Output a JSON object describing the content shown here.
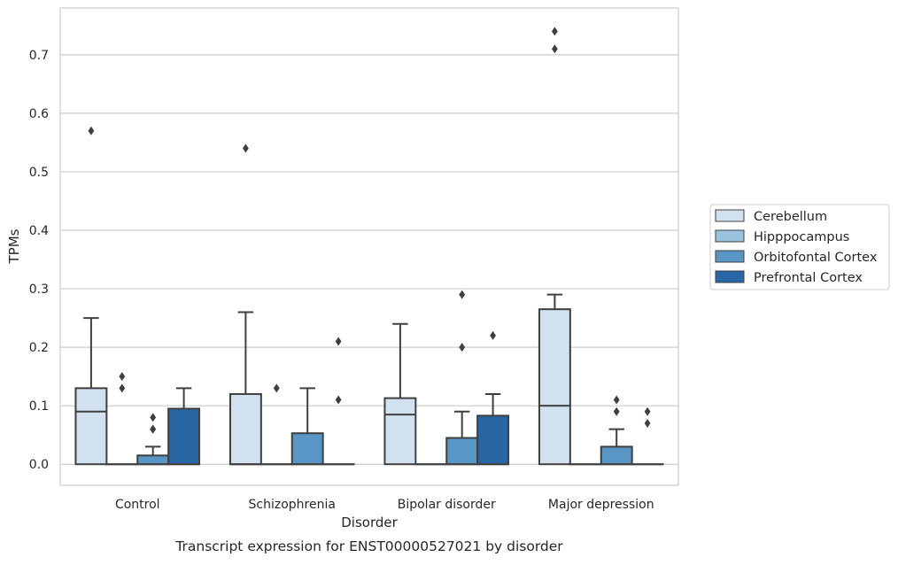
{
  "caption": "Transcript expression for ENST00000527021 by disorder",
  "chart_data": {
    "type": "box",
    "title": "",
    "xlabel": "Disorder",
    "ylabel": "TPMs",
    "ylim": [
      -0.036,
      0.78
    ],
    "yticks": [
      0.0,
      0.1,
      0.2,
      0.3,
      0.4,
      0.5,
      0.6,
      0.7
    ],
    "ytick_labels": [
      "0.0",
      "0.1",
      "0.2",
      "0.3",
      "0.4",
      "0.5",
      "0.6",
      "0.7"
    ],
    "grid": "horizontal",
    "legend_position": "right",
    "categories": [
      "Control",
      "Schizophrenia",
      "Bipolar disorder",
      "Major depression"
    ],
    "series": [
      {
        "name": "Cerebellum",
        "color": "#d1e1f0",
        "boxes": [
          {
            "q1": 0.0,
            "median": 0.09,
            "q3": 0.13,
            "whislo": 0.0,
            "whishi": 0.25,
            "fliers": [
              0.57
            ]
          },
          {
            "q1": 0.0,
            "median": 0.0,
            "q3": 0.12,
            "whislo": 0.0,
            "whishi": 0.26,
            "fliers": [
              0.54
            ]
          },
          {
            "q1": 0.0,
            "median": 0.085,
            "q3": 0.113,
            "whislo": 0.0,
            "whishi": 0.24,
            "fliers": []
          },
          {
            "q1": 0.0,
            "median": 0.1,
            "q3": 0.265,
            "whislo": 0.0,
            "whishi": 0.29,
            "fliers": [
              0.71,
              0.74
            ]
          }
        ]
      },
      {
        "name": "Hipppocampus",
        "color": "#9ac1dd",
        "boxes": [
          {
            "q1": 0.0,
            "median": 0.0,
            "q3": 0.0,
            "whislo": 0.0,
            "whishi": 0.0,
            "fliers": [
              0.13,
              0.15
            ]
          },
          {
            "q1": 0.0,
            "median": 0.0,
            "q3": 0.0,
            "whislo": 0.0,
            "whishi": 0.0,
            "fliers": [
              0.13
            ]
          },
          {
            "q1": 0.0,
            "median": 0.0,
            "q3": 0.0,
            "whislo": 0.0,
            "whishi": 0.0,
            "fliers": []
          },
          {
            "q1": 0.0,
            "median": 0.0,
            "q3": 0.0,
            "whislo": 0.0,
            "whishi": 0.0,
            "fliers": []
          }
        ]
      },
      {
        "name": "Orbitofontal Cortex",
        "color": "#5a96c5",
        "boxes": [
          {
            "q1": 0.0,
            "median": 0.0,
            "q3": 0.015,
            "whislo": 0.0,
            "whishi": 0.03,
            "fliers": [
              0.06,
              0.06,
              0.08
            ]
          },
          {
            "q1": 0.0,
            "median": 0.0,
            "q3": 0.053,
            "whislo": 0.0,
            "whishi": 0.13,
            "fliers": []
          },
          {
            "q1": 0.0,
            "median": 0.0,
            "q3": 0.045,
            "whislo": 0.0,
            "whishi": 0.09,
            "fliers": [
              0.2,
              0.29
            ]
          },
          {
            "q1": 0.0,
            "median": 0.0,
            "q3": 0.03,
            "whislo": 0.0,
            "whishi": 0.06,
            "fliers": [
              0.09,
              0.11
            ]
          }
        ]
      },
      {
        "name": "Prefrontal Cortex",
        "color": "#2966a4",
        "boxes": [
          {
            "q1": 0.0,
            "median": 0.0,
            "q3": 0.095,
            "whislo": 0.0,
            "whishi": 0.13,
            "fliers": []
          },
          {
            "q1": 0.0,
            "median": 0.0,
            "q3": 0.0,
            "whislo": 0.0,
            "whishi": 0.0,
            "fliers": [
              0.11,
              0.21
            ]
          },
          {
            "q1": 0.0,
            "median": 0.0,
            "q3": 0.083,
            "whislo": 0.0,
            "whishi": 0.12,
            "fliers": [
              0.22
            ]
          },
          {
            "q1": 0.0,
            "median": 0.0,
            "q3": 0.0,
            "whislo": 0.0,
            "whishi": 0.0,
            "fliers": [
              0.07,
              0.09
            ]
          }
        ]
      }
    ]
  }
}
